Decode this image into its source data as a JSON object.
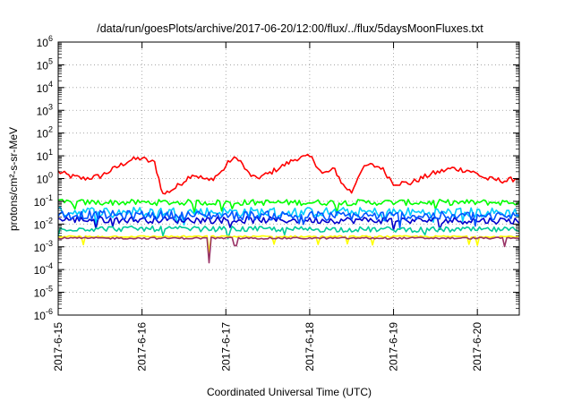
{
  "chart_data": {
    "type": "line",
    "title": "/data/run/goesPlots/archive/2017-06-20/12:00/flux/../flux/5daysMoonFluxes.txt",
    "xlabel": "Coordinated Universal Time (UTC)",
    "ylabel": "protons/cm²-s-sr-MeV",
    "yscale": "log",
    "ylim": [
      1e-06,
      1000000
    ],
    "xlim": [
      "2017-06-15 00:00",
      "2017-06-20 12:00"
    ],
    "grid": true,
    "x_ticks": [
      "2017-6-15",
      "2017-6-16",
      "2017-6-17",
      "2017-6-18",
      "2017-6-19",
      "2017-6-20"
    ],
    "y_ticks": [
      {
        "base": "10",
        "exp": "-6"
      },
      {
        "base": "10",
        "exp": "-5"
      },
      {
        "base": "10",
        "exp": "-4"
      },
      {
        "base": "10",
        "exp": "-3"
      },
      {
        "base": "10",
        "exp": "-2"
      },
      {
        "base": "10",
        "exp": "-1"
      },
      {
        "base": "10",
        "exp": "0"
      },
      {
        "base": "10",
        "exp": "1"
      },
      {
        "base": "10",
        "exp": "2"
      },
      {
        "base": "10",
        "exp": "3"
      },
      {
        "base": "10",
        "exp": "4"
      },
      {
        "base": "10",
        "exp": "5"
      },
      {
        "base": "10",
        "exp": "6"
      }
    ],
    "series": [
      {
        "color": "#ff0000",
        "x_days": [
          0.0,
          0.15,
          0.3,
          0.5,
          0.7,
          0.85,
          1.0,
          1.05,
          1.15,
          1.25,
          1.4,
          1.6,
          1.8,
          1.95,
          2.05,
          2.15,
          2.25,
          2.35,
          2.5,
          2.65,
          2.85,
          3.0,
          3.05,
          3.15,
          3.3,
          3.4,
          3.5,
          3.6,
          3.7,
          3.85,
          4.0,
          4.2,
          4.45,
          4.7,
          4.9,
          5.0,
          5.1,
          5.2,
          5.35,
          5.5
        ],
        "log10_values": [
          0.3,
          0.1,
          0.0,
          0.1,
          0.5,
          0.8,
          0.9,
          0.8,
          0.7,
          -0.7,
          -0.4,
          0.2,
          -0.1,
          0.3,
          0.8,
          0.9,
          0.3,
          0.0,
          0.2,
          0.5,
          0.9,
          0.95,
          0.8,
          0.2,
          0.4,
          -0.3,
          -0.6,
          0.3,
          0.6,
          0.5,
          -0.2,
          -0.2,
          0.2,
          0.45,
          0.35,
          0.2,
          0.0,
          -0.05,
          -0.1,
          0.05
        ],
        "noise": 0.12
      },
      {
        "color": "#00ff00",
        "x_days": [
          0.0,
          5.5
        ],
        "log10_values": [
          -1.05,
          -1.05
        ],
        "noise": 0.13
      },
      {
        "color": "#00ccff",
        "x_days": [
          0.0,
          5.5
        ],
        "log10_values": [
          -1.45,
          -1.5
        ],
        "noise": 0.22
      },
      {
        "color": "#0000cc",
        "x_days": [
          0.0,
          5.5
        ],
        "log10_values": [
          -1.8,
          -1.85
        ],
        "noise": 0.15
      },
      {
        "color": "#0055ff",
        "x_days": [
          0.0,
          5.5
        ],
        "log10_values": [
          -1.6,
          -1.65
        ],
        "noise": 0.2
      },
      {
        "color": "#00cc99",
        "x_days": [
          0.0,
          5.5
        ],
        "log10_values": [
          -2.2,
          -2.25
        ],
        "noise": 0.12
      },
      {
        "color": "#ffff00",
        "x_days": [
          0.0,
          5.5
        ],
        "log10_values": [
          -2.55,
          -2.55
        ],
        "noise": 0.04
      },
      {
        "color": "#993366",
        "x_days": [
          0.0,
          5.5
        ],
        "log10_values": [
          -2.62,
          -2.62
        ],
        "noise": 0.04
      }
    ]
  }
}
